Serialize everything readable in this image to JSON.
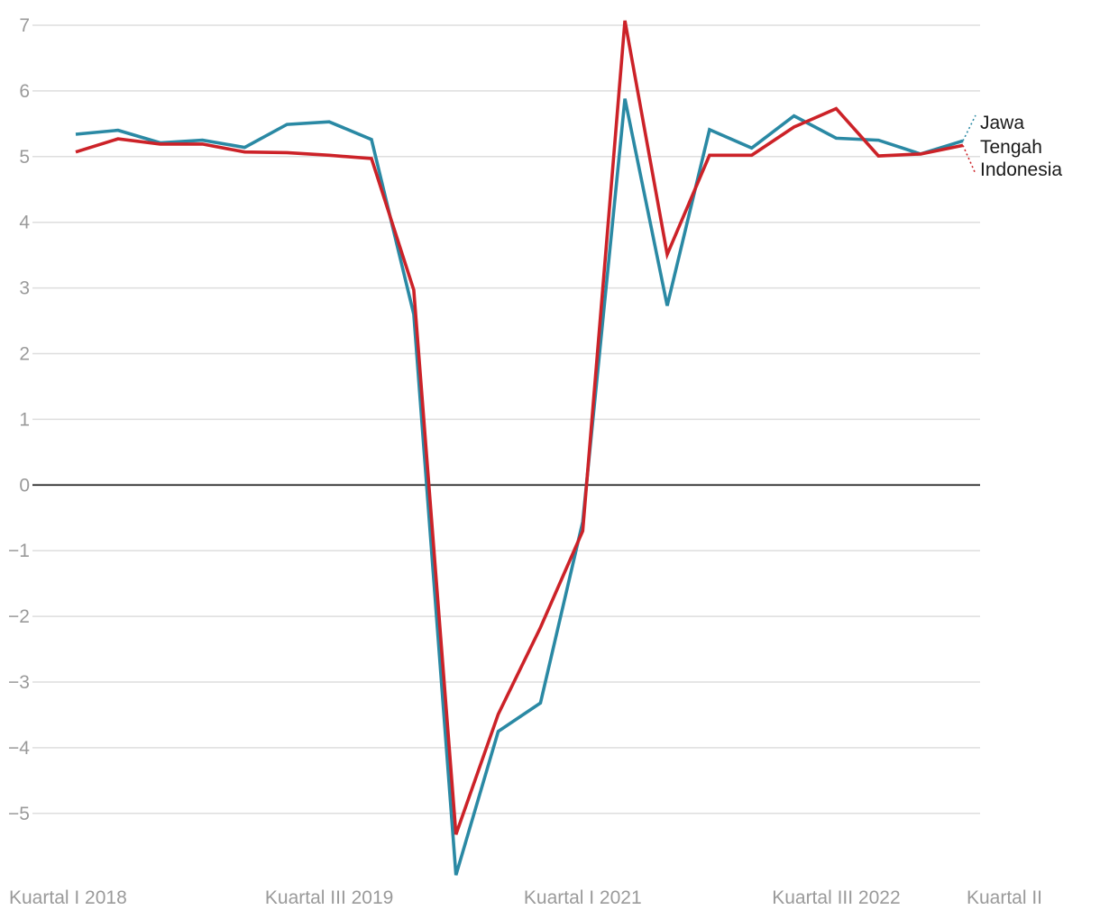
{
  "chart_data": {
    "type": "line",
    "x_tick_labels": [
      "Kuartal I 2018",
      "Kuartal III 2019",
      "Kuartal I 2021",
      "Kuartal III 2022",
      "Kuartal II"
    ],
    "x_tick_indices": [
      0,
      6,
      12,
      18,
      21
    ],
    "y_ticks": [
      "7",
      "6",
      "5",
      "4",
      "3",
      "2",
      "1",
      "0",
      "−1",
      "−2",
      "−3",
      "−4",
      "−5"
    ],
    "y_tick_values": [
      7,
      6,
      5,
      4,
      3,
      2,
      1,
      0,
      -1,
      -2,
      -3,
      -4,
      -5
    ],
    "ylim": [
      -5.94,
      7.1
    ],
    "grid": true,
    "legend_placement": "right-end",
    "series": [
      {
        "name": "Jawa Tengah",
        "name_lines": [
          "Jawa",
          "Tengah"
        ],
        "color": "#2a89a4",
        "values": [
          5.34,
          5.4,
          5.21,
          5.25,
          5.14,
          5.49,
          5.53,
          5.26,
          2.6,
          -5.94,
          -3.75,
          -3.32,
          -0.56,
          5.88,
          2.73,
          5.41,
          5.13,
          5.62,
          5.28,
          5.25,
          5.04,
          5.24
        ]
      },
      {
        "name": "Indonesia",
        "color": "#cc2228",
        "values": [
          5.07,
          5.27,
          5.19,
          5.19,
          5.07,
          5.06,
          5.02,
          4.97,
          2.97,
          -5.32,
          -3.49,
          -2.17,
          -0.7,
          7.07,
          3.51,
          5.02,
          5.02,
          5.45,
          5.73,
          5.01,
          5.04,
          5.17
        ]
      }
    ]
  }
}
